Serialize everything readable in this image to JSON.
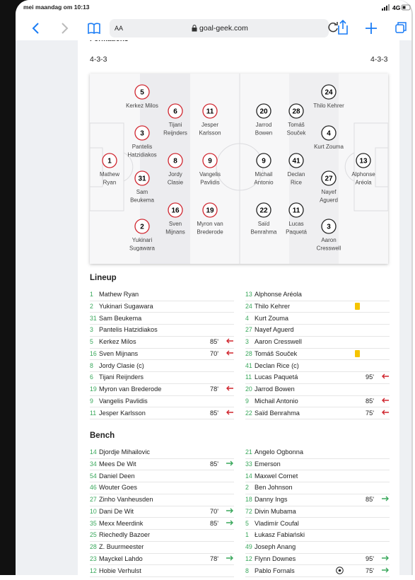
{
  "status_bar": {
    "time": "mei maandag om 10:13",
    "network": "4G"
  },
  "browser": {
    "text_size": "AA",
    "url": "goal-geek.com"
  },
  "formations": {
    "title": "Formations",
    "home": "4-3-3",
    "away": "4-3-3"
  },
  "pitch": {
    "home": [
      [
        {
          "number": "1",
          "name_lines": [
            "Mathew",
            "Ryan"
          ]
        }
      ],
      [
        {
          "number": "5",
          "name_lines": [
            "Kerkez Milos"
          ]
        },
        {
          "number": "3",
          "name_lines": [
            "Pantelis",
            "Hatzidiakos"
          ]
        },
        {
          "number": "31",
          "name_lines": [
            "Sam",
            "Beukema"
          ]
        },
        {
          "number": "2",
          "name_lines": [
            "Yukinari",
            "Sugawara"
          ]
        }
      ],
      [
        {
          "number": "6",
          "name_lines": [
            "Tijani",
            "Reijnders"
          ]
        },
        {
          "number": "8",
          "name_lines": [
            "Jordy",
            "Clasie"
          ]
        },
        {
          "number": "16",
          "name_lines": [
            "Sven",
            "Mijnans"
          ]
        }
      ],
      [
        {
          "number": "11",
          "name_lines": [
            "Jesper",
            "Karlsson"
          ]
        },
        {
          "number": "9",
          "name_lines": [
            "Vangelis",
            "Pavlidis"
          ]
        },
        {
          "number": "19",
          "name_lines": [
            "Myron van",
            "Brederode"
          ]
        }
      ]
    ],
    "away": [
      [
        {
          "number": "13",
          "name_lines": [
            "Alphonse",
            "Aréola"
          ]
        }
      ],
      [
        {
          "number": "24",
          "name_lines": [
            "Thilo Kehrer"
          ]
        },
        {
          "number": "4",
          "name_lines": [
            "Kurt Zouma"
          ]
        },
        {
          "number": "27",
          "name_lines": [
            "Nayef",
            "Aguerd"
          ]
        },
        {
          "number": "3",
          "name_lines": [
            "Aaron",
            "Cresswell"
          ]
        }
      ],
      [
        {
          "number": "28",
          "name_lines": [
            "Tomáš",
            "Souček"
          ]
        },
        {
          "number": "41",
          "name_lines": [
            "Declan",
            "Rice"
          ]
        },
        {
          "number": "11",
          "name_lines": [
            "Lucas",
            "Paquetá"
          ]
        }
      ],
      [
        {
          "number": "20",
          "name_lines": [
            "Jarrod",
            "Bowen"
          ]
        },
        {
          "number": "9",
          "name_lines": [
            "Michail",
            "Antonio"
          ]
        },
        {
          "number": "22",
          "name_lines": [
            "Saïd",
            "Benrahma"
          ]
        }
      ]
    ]
  },
  "lineup": {
    "title": "Lineup",
    "home": [
      {
        "number": "1",
        "name": "Mathew Ryan"
      },
      {
        "number": "2",
        "name": "Yukinari Sugawara"
      },
      {
        "number": "31",
        "name": "Sam Beukema"
      },
      {
        "number": "3",
        "name": "Pantelis Hatzidiakos"
      },
      {
        "number": "5",
        "name": "Kerkez Milos",
        "minute": "85'"
      },
      {
        "number": "16",
        "name": "Sven Mijnans",
        "minute": "70'"
      },
      {
        "number": "8",
        "name": "Jordy Clasie (c)"
      },
      {
        "number": "6",
        "name": "Tijani Reijnders"
      },
      {
        "number": "19",
        "name": "Myron van Brederode",
        "minute": "78'"
      },
      {
        "number": "9",
        "name": "Vangelis Pavlidis"
      },
      {
        "number": "11",
        "name": "Jesper Karlsson",
        "minute": "85'"
      }
    ],
    "away": [
      {
        "number": "13",
        "name": "Alphonse Aréola"
      },
      {
        "number": "24",
        "name": "Thilo Kehrer",
        "card": "yellow"
      },
      {
        "number": "4",
        "name": "Kurt Zouma"
      },
      {
        "number": "27",
        "name": "Nayef Aguerd"
      },
      {
        "number": "3",
        "name": "Aaron Cresswell"
      },
      {
        "number": "28",
        "name": "Tomáš Souček",
        "card": "yellow"
      },
      {
        "number": "41",
        "name": "Declan Rice (c)"
      },
      {
        "number": "11",
        "name": "Lucas Paquetá",
        "minute": "95'"
      },
      {
        "number": "20",
        "name": "Jarrod Bowen"
      },
      {
        "number": "9",
        "name": "Michail Antonio",
        "minute": "85'"
      },
      {
        "number": "22",
        "name": "Saïd Benrahma",
        "minute": "75'"
      }
    ]
  },
  "bench": {
    "title": "Bench",
    "home": [
      {
        "number": "14",
        "name": "Djordje Mihailovic"
      },
      {
        "number": "34",
        "name": "Mees De Wit",
        "minute": "85'"
      },
      {
        "number": "54",
        "name": "Daniel Deen"
      },
      {
        "number": "46",
        "name": "Wouter Goes"
      },
      {
        "number": "27",
        "name": "Zinho Vanheusden"
      },
      {
        "number": "10",
        "name": "Dani De Wit",
        "minute": "70'"
      },
      {
        "number": "35",
        "name": "Mexx Meerdink",
        "minute": "85'"
      },
      {
        "number": "25",
        "name": "Riechedly Bazoer"
      },
      {
        "number": "28",
        "name": "Z. Buurmeester"
      },
      {
        "number": "23",
        "name": "Mayckel Lahdo",
        "minute": "78'"
      },
      {
        "number": "12",
        "name": "Hobie Verhulst"
      }
    ],
    "away": [
      {
        "number": "21",
        "name": "Angelo Ogbonna"
      },
      {
        "number": "33",
        "name": "Emerson"
      },
      {
        "number": "14",
        "name": "Maxwel Cornet"
      },
      {
        "number": "2",
        "name": "Ben Johnson"
      },
      {
        "number": "18",
        "name": "Danny Ings",
        "minute": "85'"
      },
      {
        "number": "72",
        "name": "Divin Mubama"
      },
      {
        "number": "5",
        "name": "Vladimír Coufal"
      },
      {
        "number": "1",
        "name": "Łukasz Fabiański"
      },
      {
        "number": "49",
        "name": "Joseph Anang"
      },
      {
        "number": "12",
        "name": "Flynn Downes",
        "minute": "95'"
      },
      {
        "number": "8",
        "name": "Pablo Fornals",
        "minute": "75'",
        "goal": true
      }
    ]
  }
}
